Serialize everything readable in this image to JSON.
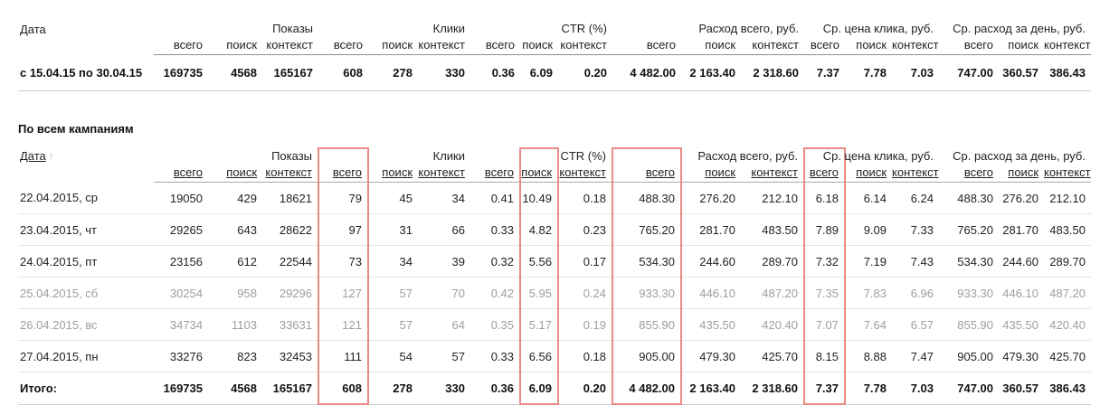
{
  "highlight": {
    "color": "#e98b87",
    "value_column_indexes": [
      3,
      7,
      9,
      12
    ]
  },
  "columns": {
    "date_label": "Дата",
    "subs": [
      "всего",
      "поиск",
      "контекст"
    ],
    "groups": [
      "Показы",
      "Клики",
      "CTR (%)",
      "Расход всего, руб.",
      "Ср. цена клика, руб.",
      "Ср. расход за день, руб."
    ]
  },
  "summary_table": {
    "row_label": "с 15.04.15 по 30.04.15",
    "values": [
      "169735",
      "4568",
      "165167",
      "608",
      "278",
      "330",
      "0.36",
      "6.09",
      "0.20",
      "4 482.00",
      "2 163.40",
      "2 318.60",
      "7.37",
      "7.78",
      "7.03",
      "747.00",
      "360.57",
      "386.43"
    ]
  },
  "section_title": "По всем кампаниям",
  "campaigns_table": {
    "sort_arrow": "↑",
    "rows": [
      {
        "label": "22.04.2015, ср",
        "muted": false,
        "values": [
          "19050",
          "429",
          "18621",
          "79",
          "45",
          "34",
          "0.41",
          "10.49",
          "0.18",
          "488.30",
          "276.20",
          "212.10",
          "6.18",
          "6.14",
          "6.24",
          "488.30",
          "276.20",
          "212.10"
        ]
      },
      {
        "label": "23.04.2015, чт",
        "muted": false,
        "values": [
          "29265",
          "643",
          "28622",
          "97",
          "31",
          "66",
          "0.33",
          "4.82",
          "0.23",
          "765.20",
          "281.70",
          "483.50",
          "7.89",
          "9.09",
          "7.33",
          "765.20",
          "281.70",
          "483.50"
        ]
      },
      {
        "label": "24.04.2015, пт",
        "muted": false,
        "values": [
          "23156",
          "612",
          "22544",
          "73",
          "34",
          "39",
          "0.32",
          "5.56",
          "0.17",
          "534.30",
          "244.60",
          "289.70",
          "7.32",
          "7.19",
          "7.43",
          "534.30",
          "244.60",
          "289.70"
        ]
      },
      {
        "label": "25.04.2015, сб",
        "muted": true,
        "values": [
          "30254",
          "958",
          "29296",
          "127",
          "57",
          "70",
          "0.42",
          "5.95",
          "0.24",
          "933.30",
          "446.10",
          "487.20",
          "7.35",
          "7.83",
          "6.96",
          "933.30",
          "446.10",
          "487.20"
        ]
      },
      {
        "label": "26.04.2015, вс",
        "muted": true,
        "values": [
          "34734",
          "1103",
          "33631",
          "121",
          "57",
          "64",
          "0.35",
          "5.17",
          "0.19",
          "855.90",
          "435.50",
          "420.40",
          "7.07",
          "7.64",
          "6.57",
          "855.90",
          "435.50",
          "420.40"
        ]
      },
      {
        "label": "27.04.2015, пн",
        "muted": false,
        "values": [
          "33276",
          "823",
          "32453",
          "111",
          "54",
          "57",
          "0.33",
          "6.56",
          "0.18",
          "905.00",
          "479.30",
          "425.70",
          "8.15",
          "8.88",
          "7.47",
          "905.00",
          "479.30",
          "425.70"
        ]
      }
    ],
    "total": {
      "label": "Итого:",
      "values": [
        "169735",
        "4568",
        "165167",
        "608",
        "278",
        "330",
        "0.36",
        "6.09",
        "0.20",
        "4 482.00",
        "2 163.40",
        "2 318.60",
        "7.37",
        "7.78",
        "7.03",
        "747.00",
        "360.57",
        "386.43"
      ]
    }
  }
}
